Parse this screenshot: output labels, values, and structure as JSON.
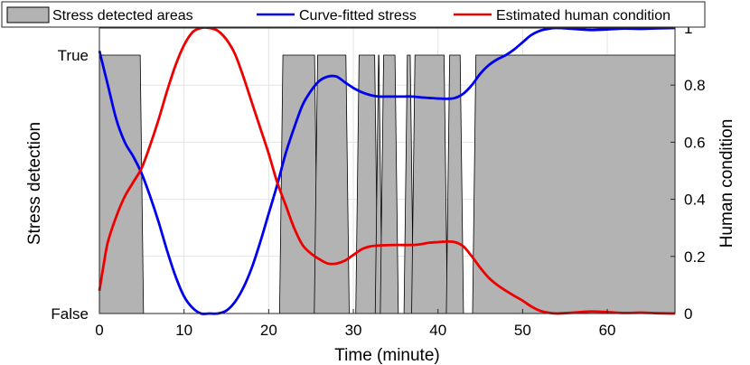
{
  "chart_data": {
    "type": "line",
    "xlabel": "Time (minute)",
    "ylabel_left": "Stress detection",
    "ylabel_right": "Human condition",
    "xlim": [
      0,
      68
    ],
    "x_ticks": [
      0,
      10,
      20,
      30,
      40,
      50,
      60
    ],
    "y_left_ticks": [
      "False",
      "True"
    ],
    "y_right_ticks": [
      0,
      0.2,
      0.4,
      0.6,
      0.8,
      1
    ],
    "ylim_right": [
      0,
      1
    ],
    "grid": true,
    "legend": {
      "placement": "top",
      "entries": [
        "Stress detected areas",
        "Curve-fitted stress",
        "Estimated human condition"
      ]
    },
    "colors": {
      "stress_area": "#b3b3b3",
      "stress_curve": "#0000ee",
      "human_condition": "#ee0000"
    },
    "stress_detected_intervals": [
      [
        0,
        5
      ],
      [
        21.5,
        25.6
      ],
      [
        25.6,
        29.3
      ],
      [
        30.5,
        32.7
      ],
      [
        32.8,
        33.2
      ],
      [
        33.4,
        35.1
      ],
      [
        36.2,
        36.9
      ],
      [
        37.1,
        40.9
      ],
      [
        41.2,
        42.8
      ],
      [
        44.3,
        68
      ]
    ],
    "series": [
      {
        "name": "Curve-fitted stress",
        "points": [
          [
            0,
            0.92
          ],
          [
            1,
            0.8
          ],
          [
            2,
            0.68
          ],
          [
            3,
            0.6
          ],
          [
            4,
            0.55
          ],
          [
            5,
            0.49
          ],
          [
            6,
            0.41
          ],
          [
            7,
            0.32
          ],
          [
            8,
            0.22
          ],
          [
            9,
            0.13
          ],
          [
            10,
            0.06
          ],
          [
            11,
            0.02
          ],
          [
            12,
            0.0
          ],
          [
            13,
            0.0
          ],
          [
            14,
            0.0
          ],
          [
            15,
            0.01
          ],
          [
            16,
            0.04
          ],
          [
            17,
            0.09
          ],
          [
            18,
            0.16
          ],
          [
            19,
            0.25
          ],
          [
            20,
            0.35
          ],
          [
            21,
            0.45
          ],
          [
            22,
            0.56
          ],
          [
            23,
            0.65
          ],
          [
            24,
            0.73
          ],
          [
            25,
            0.78
          ],
          [
            26,
            0.815
          ],
          [
            27,
            0.83
          ],
          [
            28,
            0.83
          ],
          [
            29,
            0.81
          ],
          [
            30,
            0.79
          ],
          [
            31,
            0.775
          ],
          [
            32,
            0.765
          ],
          [
            33,
            0.76
          ],
          [
            34,
            0.76
          ],
          [
            35,
            0.76
          ],
          [
            36,
            0.76
          ],
          [
            37,
            0.76
          ],
          [
            38,
            0.757
          ],
          [
            39,
            0.755
          ],
          [
            40,
            0.753
          ],
          [
            41,
            0.752
          ],
          [
            42,
            0.755
          ],
          [
            43,
            0.77
          ],
          [
            44,
            0.8
          ],
          [
            45,
            0.84
          ],
          [
            46,
            0.87
          ],
          [
            47,
            0.89
          ],
          [
            48,
            0.905
          ],
          [
            49,
            0.925
          ],
          [
            50,
            0.95
          ],
          [
            51,
            0.975
          ],
          [
            52,
            0.99
          ],
          [
            53,
            0.997
          ],
          [
            54,
            1.0
          ],
          [
            56,
            0.997
          ],
          [
            58,
            0.993
          ],
          [
            60,
            0.995
          ],
          [
            62,
            0.998
          ],
          [
            64,
            0.997
          ],
          [
            66,
            0.999
          ],
          [
            68,
            1.0
          ]
        ]
      },
      {
        "name": "Estimated human condition",
        "points": [
          [
            0,
            0.08
          ],
          [
            0.5,
            0.17
          ],
          [
            1,
            0.25
          ],
          [
            2,
            0.34
          ],
          [
            3,
            0.41
          ],
          [
            4,
            0.46
          ],
          [
            5,
            0.51
          ],
          [
            6,
            0.59
          ],
          [
            7,
            0.68
          ],
          [
            8,
            0.78
          ],
          [
            9,
            0.87
          ],
          [
            10,
            0.94
          ],
          [
            11,
            0.985
          ],
          [
            12,
            1.0
          ],
          [
            13,
            1.0
          ],
          [
            14,
            0.99
          ],
          [
            15,
            0.96
          ],
          [
            16,
            0.91
          ],
          [
            17,
            0.83
          ],
          [
            18,
            0.74
          ],
          [
            19,
            0.65
          ],
          [
            20,
            0.56
          ],
          [
            21,
            0.46
          ],
          [
            22,
            0.38
          ],
          [
            23,
            0.3
          ],
          [
            24,
            0.24
          ],
          [
            25,
            0.21
          ],
          [
            26,
            0.19
          ],
          [
            27,
            0.175
          ],
          [
            28,
            0.175
          ],
          [
            29,
            0.185
          ],
          [
            30,
            0.205
          ],
          [
            31,
            0.225
          ],
          [
            32,
            0.235
          ],
          [
            33,
            0.238
          ],
          [
            35,
            0.24
          ],
          [
            37,
            0.24
          ],
          [
            38,
            0.243
          ],
          [
            39,
            0.248
          ],
          [
            40,
            0.25
          ],
          [
            41,
            0.252
          ],
          [
            42,
            0.25
          ],
          [
            43,
            0.235
          ],
          [
            44,
            0.2
          ],
          [
            45,
            0.16
          ],
          [
            46,
            0.125
          ],
          [
            47,
            0.1
          ],
          [
            48,
            0.08
          ],
          [
            49,
            0.062
          ],
          [
            50,
            0.045
          ],
          [
            51,
            0.025
          ],
          [
            52,
            0.01
          ],
          [
            53,
            0.003
          ],
          [
            54,
            0.0
          ],
          [
            56,
            0.003
          ],
          [
            58,
            0.007
          ],
          [
            60,
            0.005
          ],
          [
            62,
            0.002
          ],
          [
            64,
            0.003
          ],
          [
            66,
            0.001
          ],
          [
            68,
            0.0
          ]
        ]
      }
    ]
  }
}
